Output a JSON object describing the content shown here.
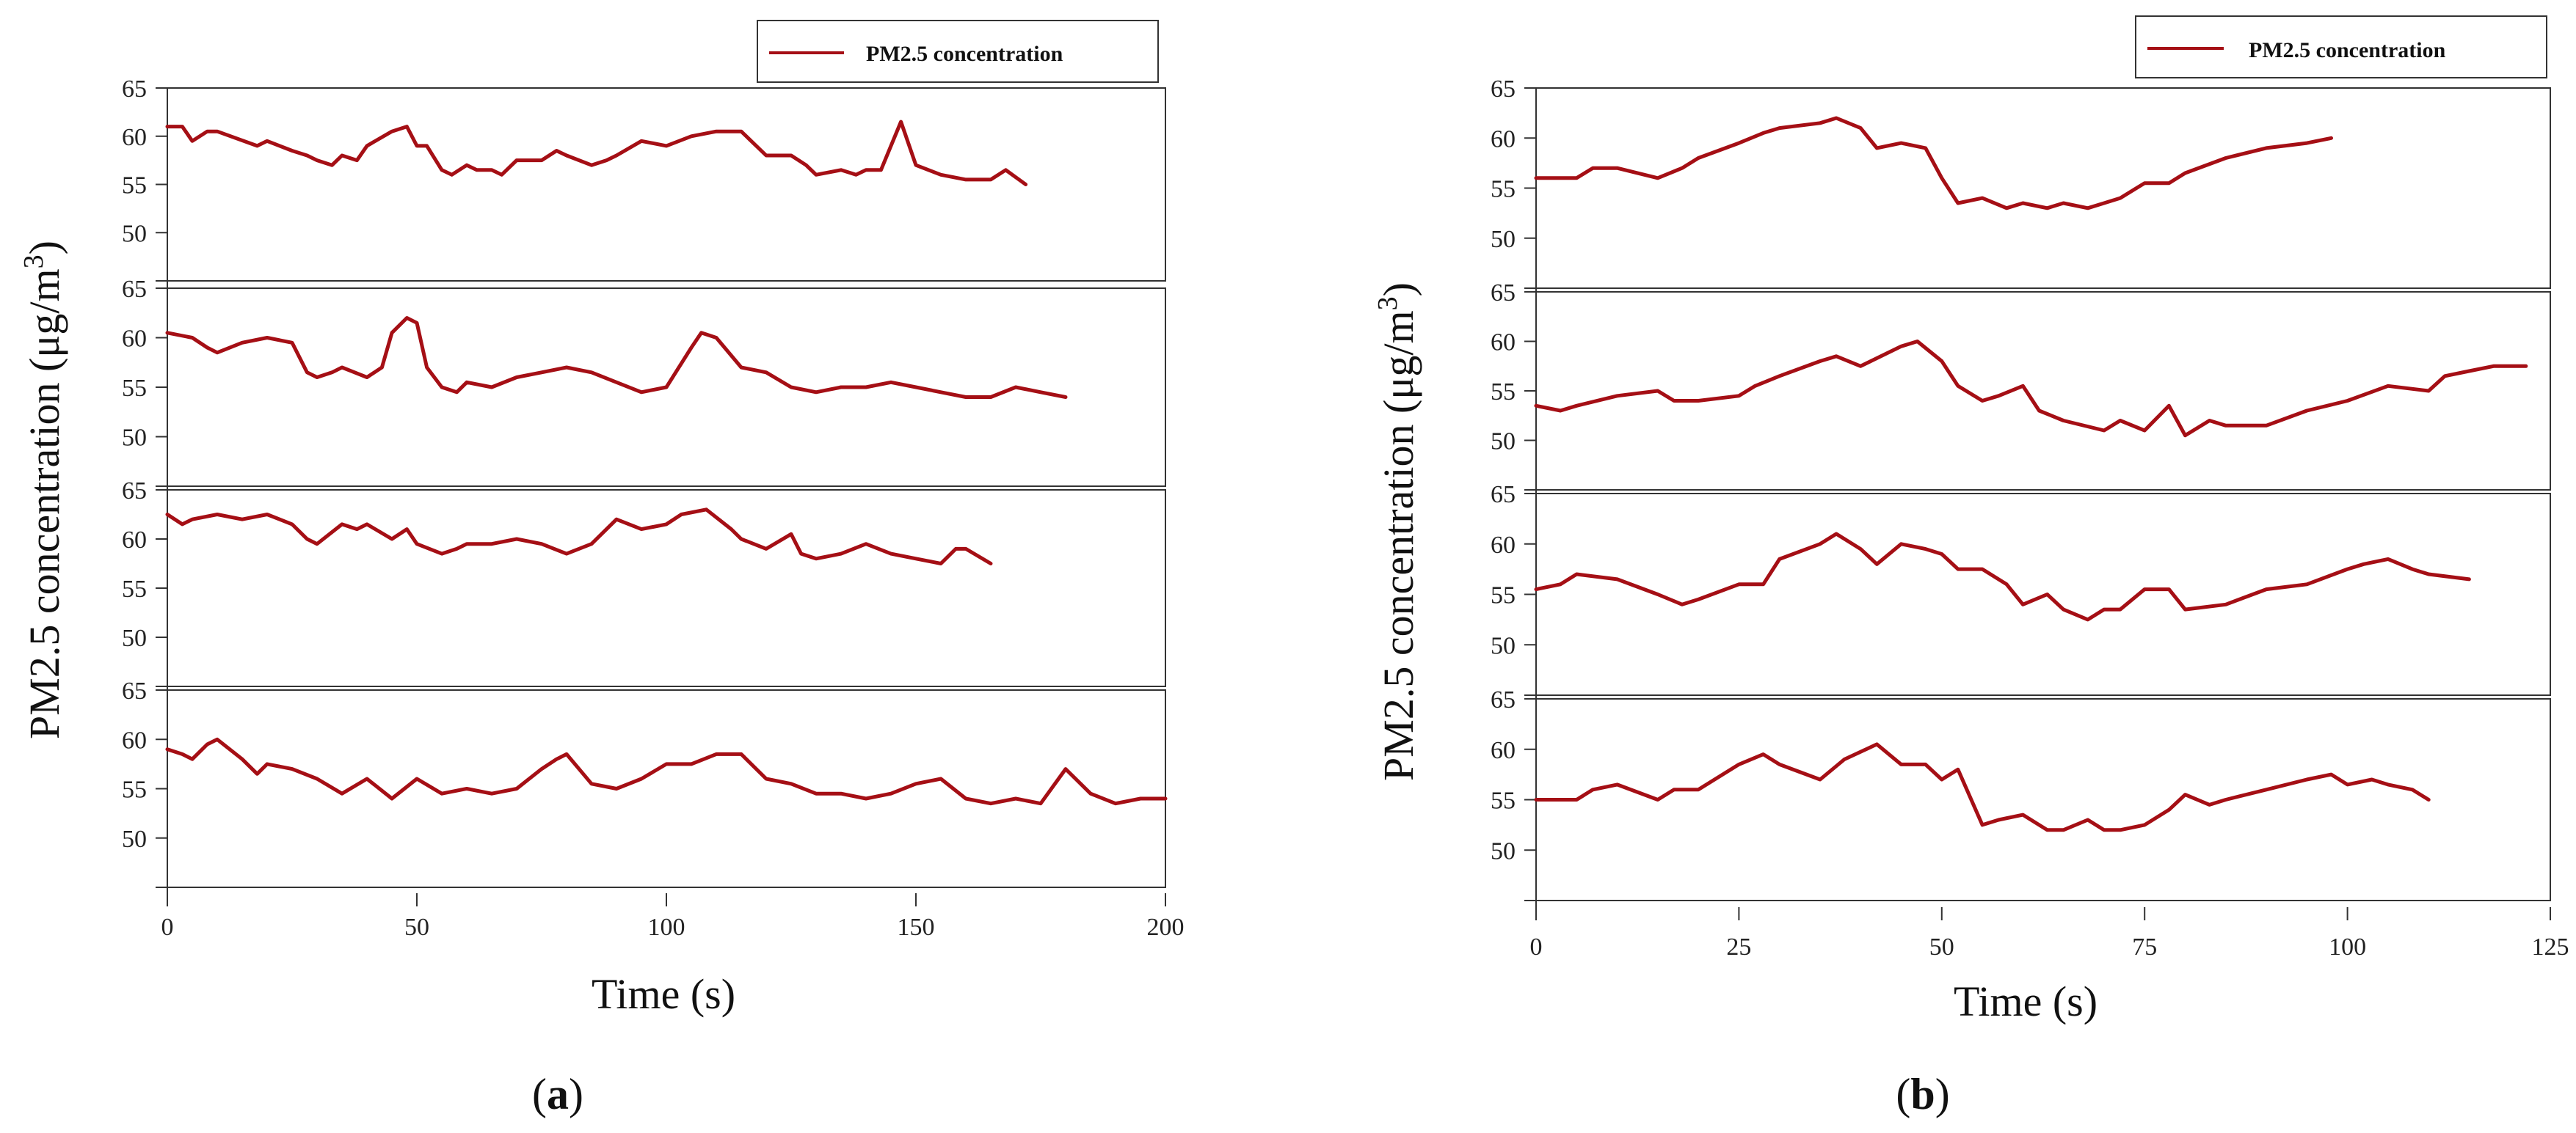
{
  "figure": {
    "color": "#a50f15",
    "panel_labels": [
      {
        "open": "(",
        "letter": "a",
        "close": ")"
      },
      {
        "open": "(",
        "letter": "b",
        "close": ")"
      }
    ]
  },
  "chart_data": [
    {
      "type": "line",
      "legend": "PM2.5 concentration",
      "xlabel": "Time (s)",
      "ylabel_main": "PM2.5 concentration (μg/m",
      "ylabel_sup": "3",
      "ylabel_close": ")",
      "xlim": [
        0,
        200
      ],
      "xticks": [
        0,
        50,
        100,
        150,
        200
      ],
      "ylim": [
        45,
        65
      ],
      "yticks": [
        50,
        55,
        60,
        65
      ],
      "subplots": [
        {
          "x": [
            0,
            3,
            5,
            8,
            10,
            18,
            20,
            25,
            28,
            30,
            33,
            35,
            38,
            40,
            45,
            48,
            50,
            52,
            55,
            57,
            60,
            62,
            65,
            67,
            70,
            75,
            78,
            80,
            85,
            88,
            90,
            95,
            100,
            105,
            110,
            115,
            120,
            125,
            128,
            130,
            135,
            138,
            140,
            143,
            147,
            150,
            155,
            160,
            165,
            168,
            172
          ],
          "y": [
            61,
            61,
            59.5,
            60.5,
            60.5,
            59,
            59.5,
            58.5,
            58,
            57.5,
            57,
            58,
            57.5,
            59,
            60.5,
            61,
            59,
            59,
            56.5,
            56,
            57,
            56.5,
            56.5,
            56,
            57.5,
            57.5,
            58.5,
            58,
            57,
            57.5,
            58,
            59.5,
            59,
            60,
            60.5,
            60.5,
            58,
            58,
            57,
            56,
            56.5,
            56,
            56.5,
            56.5,
            61.5,
            57,
            56,
            55.5,
            55.5,
            56.5,
            55
          ]
        },
        {
          "x": [
            0,
            5,
            8,
            10,
            15,
            20,
            25,
            28,
            30,
            33,
            35,
            40,
            43,
            45,
            48,
            50,
            52,
            55,
            58,
            60,
            65,
            70,
            75,
            80,
            85,
            90,
            95,
            100,
            105,
            107,
            110,
            115,
            120,
            125,
            130,
            135,
            140,
            145,
            150,
            155,
            160,
            165,
            170,
            175,
            180
          ],
          "y": [
            60.5,
            60,
            59,
            58.5,
            59.5,
            60,
            59.5,
            56.5,
            56,
            56.5,
            57,
            56,
            57,
            60.5,
            62,
            61.5,
            57,
            55,
            54.5,
            55.5,
            55,
            56,
            56.5,
            57,
            56.5,
            55.5,
            54.5,
            55,
            59,
            60.5,
            60,
            57,
            56.5,
            55,
            54.5,
            55,
            55,
            55.5,
            55,
            54.5,
            54,
            54,
            55,
            54.5,
            54
          ]
        },
        {
          "x": [
            0,
            3,
            5,
            10,
            15,
            20,
            25,
            28,
            30,
            35,
            38,
            40,
            45,
            48,
            50,
            55,
            58,
            60,
            65,
            70,
            75,
            80,
            85,
            90,
            95,
            100,
            103,
            108,
            113,
            115,
            120,
            125,
            127,
            130,
            135,
            140,
            145,
            150,
            155,
            158,
            160,
            165
          ],
          "y": [
            62.5,
            61.5,
            62,
            62.5,
            62,
            62.5,
            61.5,
            60,
            59.5,
            61.5,
            61,
            61.5,
            60,
            61,
            59.5,
            58.5,
            59,
            59.5,
            59.5,
            60,
            59.5,
            58.5,
            59.5,
            62,
            61,
            61.5,
            62.5,
            63,
            61,
            60,
            59,
            60.5,
            58.5,
            58,
            58.5,
            59.5,
            58.5,
            58,
            57.5,
            59,
            59,
            57.5
          ]
        },
        {
          "x": [
            0,
            3,
            5,
            8,
            10,
            15,
            18,
            20,
            25,
            30,
            35,
            40,
            45,
            50,
            55,
            60,
            65,
            70,
            75,
            78,
            80,
            85,
            90,
            95,
            100,
            105,
            110,
            115,
            120,
            125,
            130,
            135,
            140,
            145,
            150,
            155,
            160,
            165,
            170,
            175,
            180,
            185,
            190,
            195,
            200
          ],
          "y": [
            59,
            58.5,
            58,
            59.5,
            60,
            58,
            56.5,
            57.5,
            57,
            56,
            54.5,
            56,
            54,
            56,
            54.5,
            55,
            54.5,
            55,
            57,
            58,
            58.5,
            55.5,
            55,
            56,
            57.5,
            57.5,
            58.5,
            58.5,
            56,
            55.5,
            54.5,
            54.5,
            54,
            54.5,
            55.5,
            56,
            54,
            53.5,
            54,
            53.5,
            57,
            54.5,
            53.5,
            54,
            54
          ]
        }
      ]
    },
    {
      "type": "line",
      "legend": "PM2.5 concentration",
      "xlabel": "Time (s)",
      "ylabel_main": "PM2.5 concentration (μg/m",
      "ylabel_sup": "3",
      "ylabel_close": ")",
      "xlim": [
        0,
        125
      ],
      "xticks": [
        0,
        25,
        50,
        75,
        100,
        125
      ],
      "ylim": [
        45,
        65
      ],
      "yticks": [
        50,
        55,
        60,
        65
      ],
      "subplots": [
        {
          "x": [
            0,
            5,
            7,
            10,
            15,
            18,
            20,
            25,
            28,
            30,
            35,
            37,
            40,
            42,
            45,
            48,
            50,
            52,
            55,
            58,
            60,
            63,
            65,
            68,
            70,
            72,
            75,
            78,
            80,
            85,
            90,
            95,
            98
          ],
          "y": [
            56,
            56,
            57,
            57,
            56,
            57,
            58,
            59.5,
            60.5,
            61,
            61.5,
            62,
            61,
            59,
            59.5,
            59,
            56,
            53.5,
            54,
            53,
            53.5,
            53,
            53.5,
            53,
            53.5,
            54,
            55.5,
            55.5,
            56.5,
            58,
            59,
            59.5,
            60
          ]
        },
        {
          "x": [
            0,
            3,
            5,
            10,
            15,
            17,
            20,
            25,
            27,
            30,
            35,
            37,
            40,
            45,
            47,
            50,
            52,
            55,
            57,
            60,
            62,
            65,
            70,
            72,
            75,
            78,
            80,
            83,
            85,
            90,
            95,
            100,
            105,
            110,
            112,
            115,
            118,
            120,
            122
          ],
          "y": [
            53.5,
            53,
            53.5,
            54.5,
            55,
            54,
            54,
            54.5,
            55.5,
            56.5,
            58,
            58.5,
            57.5,
            59.5,
            60,
            58,
            55.5,
            54,
            54.5,
            55.5,
            53,
            52,
            51,
            52,
            51,
            53.5,
            50.5,
            52,
            51.5,
            51.5,
            53,
            54,
            55.5,
            55,
            56.5,
            57,
            57.5,
            57.5,
            57.5
          ]
        },
        {
          "x": [
            0,
            3,
            5,
            10,
            15,
            18,
            20,
            25,
            28,
            30,
            35,
            37,
            40,
            42,
            45,
            48,
            50,
            52,
            55,
            58,
            60,
            63,
            65,
            68,
            70,
            72,
            75,
            78,
            80,
            85,
            90,
            95,
            100,
            102,
            105,
            108,
            110,
            115
          ],
          "y": [
            55.5,
            56,
            57,
            56.5,
            55,
            54,
            54.5,
            56,
            56,
            58.5,
            60,
            61,
            59.5,
            58,
            60,
            59.5,
            59,
            57.5,
            57.5,
            56,
            54,
            55,
            53.5,
            52.5,
            53.5,
            53.5,
            55.5,
            55.5,
            53.5,
            54,
            55.5,
            56,
            57.5,
            58,
            58.5,
            57.5,
            57,
            56.5
          ]
        },
        {
          "x": [
            0,
            5,
            7,
            10,
            15,
            17,
            20,
            22,
            25,
            28,
            30,
            35,
            38,
            42,
            45,
            48,
            50,
            52,
            55,
            57,
            60,
            63,
            65,
            68,
            70,
            72,
            75,
            78,
            80,
            83,
            85,
            90,
            95,
            98,
            100,
            103,
            105,
            108,
            110
          ],
          "y": [
            55,
            55,
            56,
            56.5,
            55,
            56,
            56,
            57,
            58.5,
            59.5,
            58.5,
            57,
            59,
            60.5,
            58.5,
            58.5,
            57,
            58,
            52.5,
            53,
            53.5,
            52,
            52,
            53,
            52,
            52,
            52.5,
            54,
            55.5,
            54.5,
            55,
            56,
            57,
            57.5,
            56.5,
            57,
            56.5,
            56,
            55
          ]
        }
      ]
    }
  ]
}
